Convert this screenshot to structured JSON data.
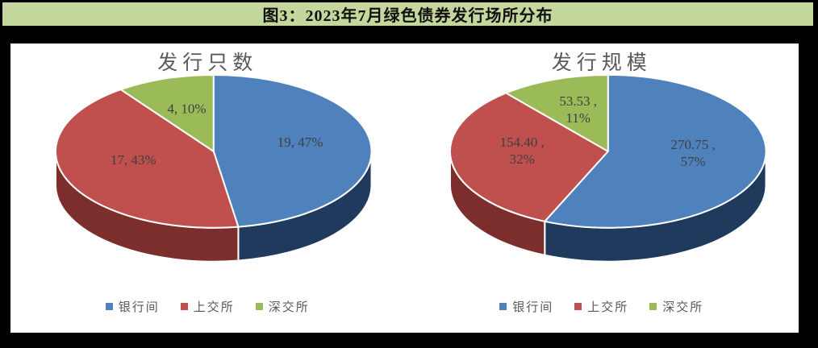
{
  "header": {
    "title": "图3：2023年7月绿色债券发行场所分布"
  },
  "colors": {
    "frame": "#000000",
    "title_bar_bg": "#c4d79d",
    "title_text": "#111111",
    "chart_title_text": "#595959",
    "label_text": "#404040",
    "legend_text": "#595959",
    "slice_border": "#ffffff"
  },
  "legend": {
    "items": [
      {
        "label": "银行间",
        "color": "#4f81bd"
      },
      {
        "label": "上交所",
        "color": "#c0504d"
      },
      {
        "label": "深交所",
        "color": "#9bbb59"
      }
    ]
  },
  "chart_data": [
    {
      "type": "pie",
      "style": "3d",
      "title": "发行只数",
      "categories": [
        "银行间",
        "上交所",
        "深交所"
      ],
      "values": [
        19,
        17,
        4
      ],
      "percents": [
        47,
        43,
        10
      ],
      "labels": [
        [
          "19, 47%"
        ],
        [
          "17, 43%"
        ],
        [
          "4, 10%"
        ]
      ],
      "colors": [
        "#4f81bd",
        "#c0504d",
        "#9bbb59"
      ],
      "side_colors": [
        "#1f3a5c",
        "#7c2e2c",
        "#5f7934"
      ],
      "start_angle": 0,
      "direction": "clockwise",
      "legend_position": "bottom"
    },
    {
      "type": "pie",
      "style": "3d",
      "title": "发行规模",
      "categories": [
        "银行间",
        "上交所",
        "深交所"
      ],
      "values": [
        270.75,
        154.4,
        53.53
      ],
      "percents": [
        57,
        32,
        11
      ],
      "labels": [
        [
          "270.75 ,",
          "57%"
        ],
        [
          "154.40 ,",
          "32%"
        ],
        [
          "53.53 ,",
          "11%"
        ]
      ],
      "colors": [
        "#4f81bd",
        "#c0504d",
        "#9bbb59"
      ],
      "side_colors": [
        "#1f3a5c",
        "#7c2e2c",
        "#5f7934"
      ],
      "start_angle": 0,
      "direction": "clockwise",
      "legend_position": "bottom"
    }
  ]
}
